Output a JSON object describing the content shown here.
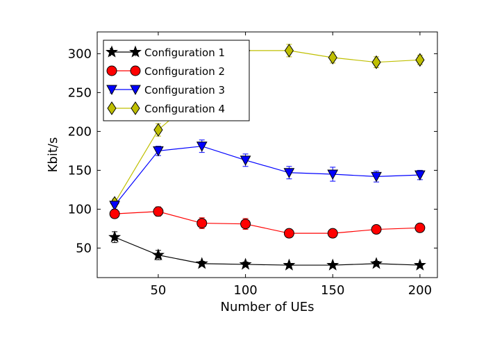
{
  "chart_data": {
    "type": "line",
    "xlabel": "Number of UEs",
    "ylabel": "Kbit/s",
    "xlim": [
      15,
      210
    ],
    "ylim": [
      12,
      328
    ],
    "xticks": [
      50,
      100,
      150,
      200
    ],
    "yticks": [
      50,
      100,
      150,
      200,
      250,
      300
    ],
    "x": [
      25,
      50,
      75,
      100,
      125,
      150,
      175,
      200
    ],
    "grid": false,
    "legend_position": "top-left",
    "series": [
      {
        "name": "Configuration 1",
        "color": "#000000",
        "marker": "star",
        "values": [
          64,
          41,
          30,
          29,
          28,
          28,
          30,
          28
        ],
        "errors": [
          7,
          6,
          3,
          3,
          2,
          2,
          3,
          2
        ]
      },
      {
        "name": "Configuration 2",
        "color": "#ff0000",
        "marker": "circle",
        "values": [
          94,
          97,
          82,
          81,
          69,
          69,
          74,
          76
        ],
        "errors": [
          4,
          6,
          7,
          7,
          4,
          4,
          4,
          4
        ]
      },
      {
        "name": "Configuration 3",
        "color": "#0000ff",
        "marker": "triangle-down",
        "values": [
          105,
          175,
          181,
          163,
          147,
          145,
          142,
          144
        ],
        "errors": [
          5,
          6,
          8,
          8,
          8,
          9,
          7,
          6
        ]
      },
      {
        "name": "Configuration 4",
        "color": "#bfbf00",
        "marker": "diamond",
        "values": [
          108,
          202,
          250,
          304,
          304,
          295,
          289,
          292
        ],
        "errors": [
          5,
          8,
          8,
          5,
          8,
          7,
          7,
          6
        ]
      }
    ]
  }
}
